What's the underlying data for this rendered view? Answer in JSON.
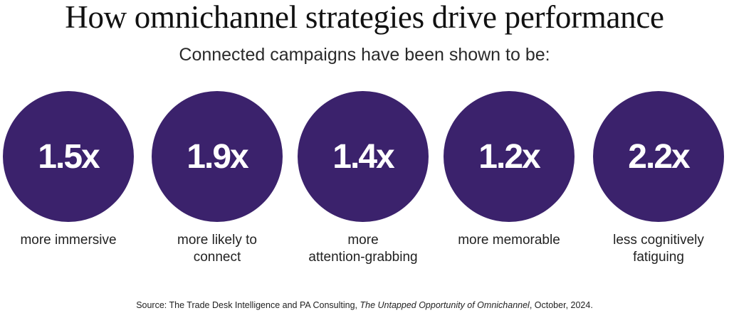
{
  "title": "How omnichannel strategies drive performance",
  "subtitle": "Connected campaigns have been shown to be:",
  "stats": [
    {
      "value": "1.5x",
      "label": "more immersive"
    },
    {
      "value": "1.9x",
      "label": "more likely to\nconnect"
    },
    {
      "value": "1.4x",
      "label": "more\nattention-grabbing"
    },
    {
      "value": "1.2x",
      "label": "more memorable"
    },
    {
      "value": "2.2x",
      "label": "less cognitively\nfatiguing"
    }
  ],
  "source": {
    "prefix": "Source: The Trade Desk Intelligence and PA Consulting, ",
    "title": "The Untapped Opportunity of Omnichannel",
    "suffix": ", October, 2024."
  },
  "colors": {
    "circle": "#3b226c"
  }
}
